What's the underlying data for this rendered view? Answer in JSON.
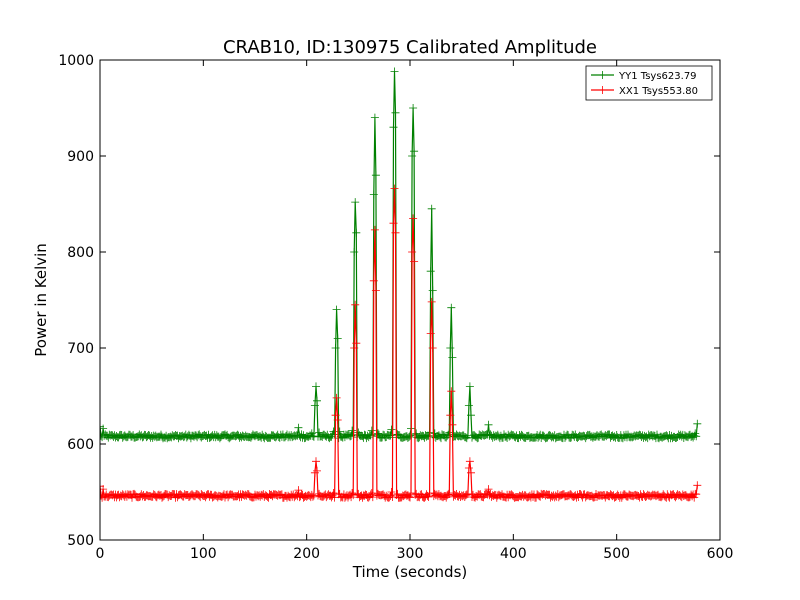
{
  "chart_data": {
    "type": "line",
    "title": "CRAB10, ID:130975 Calibrated Amplitude",
    "xlabel": "Time (seconds)",
    "ylabel": "Power in Kelvin",
    "xlim": [
      0,
      600
    ],
    "ylim": [
      500,
      1000
    ],
    "xticks": [
      0,
      100,
      200,
      300,
      400,
      500,
      600
    ],
    "yticks": [
      500,
      600,
      700,
      800,
      900,
      1000
    ],
    "grid": false,
    "legend_position": "top-right",
    "baseline_noise": 2,
    "series": [
      {
        "name": "YY1 Tsys623.79",
        "color": "#008000",
        "marker": "+",
        "baseline": 608,
        "points": [
          [
            0,
            618
          ],
          [
            3,
            616
          ],
          [
            190,
            609
          ],
          [
            192,
            617
          ],
          [
            195,
            610
          ],
          [
            205,
            611
          ],
          [
            208,
            640
          ],
          [
            209,
            660
          ],
          [
            210,
            645
          ],
          [
            212,
            612
          ],
          [
            226,
            613
          ],
          [
            228,
            700
          ],
          [
            229,
            740
          ],
          [
            230,
            710
          ],
          [
            232,
            613
          ],
          [
            244,
            614
          ],
          [
            246,
            800
          ],
          [
            247,
            852
          ],
          [
            248,
            820
          ],
          [
            250,
            612
          ],
          [
            263,
            614
          ],
          [
            265,
            860
          ],
          [
            266,
            940
          ],
          [
            267,
            880
          ],
          [
            269,
            611
          ],
          [
            282,
            615
          ],
          [
            284,
            930
          ],
          [
            285,
            988
          ],
          [
            286,
            945
          ],
          [
            288,
            610
          ],
          [
            301,
            616
          ],
          [
            302,
            900
          ],
          [
            303,
            950
          ],
          [
            304,
            905
          ],
          [
            306,
            611
          ],
          [
            319,
            612
          ],
          [
            320,
            780
          ],
          [
            321,
            845
          ],
          [
            322,
            760
          ],
          [
            324,
            611
          ],
          [
            338,
            612
          ],
          [
            339,
            700
          ],
          [
            340,
            742
          ],
          [
            341,
            690
          ],
          [
            343,
            608
          ],
          [
            356,
            609
          ],
          [
            357,
            640
          ],
          [
            358,
            660
          ],
          [
            359,
            630
          ],
          [
            361,
            609
          ],
          [
            374,
            610
          ],
          [
            376,
            620
          ],
          [
            378,
            610
          ],
          [
            576,
            611
          ],
          [
            578,
            621
          ]
        ]
      },
      {
        "name": "XX1 Tsys553.80",
        "color": "#ff0000",
        "marker": "+",
        "baseline": 546,
        "points": [
          [
            0,
            556
          ],
          [
            3,
            553
          ],
          [
            190,
            547
          ],
          [
            192,
            552
          ],
          [
            195,
            548
          ],
          [
            205,
            547
          ],
          [
            208,
            570
          ],
          [
            209,
            582
          ],
          [
            210,
            572
          ],
          [
            212,
            548
          ],
          [
            226,
            549
          ],
          [
            228,
            630
          ],
          [
            229,
            648
          ],
          [
            230,
            625
          ],
          [
            232,
            548
          ],
          [
            244,
            549
          ],
          [
            246,
            700
          ],
          [
            247,
            745
          ],
          [
            248,
            705
          ],
          [
            250,
            548
          ],
          [
            263,
            549
          ],
          [
            265,
            770
          ],
          [
            266,
            823
          ],
          [
            267,
            760
          ],
          [
            269,
            548
          ],
          [
            282,
            550
          ],
          [
            284,
            830
          ],
          [
            285,
            866
          ],
          [
            286,
            820
          ],
          [
            288,
            548
          ],
          [
            301,
            549
          ],
          [
            302,
            800
          ],
          [
            303,
            835
          ],
          [
            304,
            790
          ],
          [
            306,
            548
          ],
          [
            319,
            549
          ],
          [
            320,
            715
          ],
          [
            321,
            748
          ],
          [
            322,
            700
          ],
          [
            324,
            548
          ],
          [
            338,
            549
          ],
          [
            339,
            630
          ],
          [
            340,
            655
          ],
          [
            341,
            620
          ],
          [
            343,
            547
          ],
          [
            356,
            548
          ],
          [
            357,
            575
          ],
          [
            358,
            582
          ],
          [
            359,
            570
          ],
          [
            361,
            547
          ],
          [
            374,
            548
          ],
          [
            376,
            553
          ],
          [
            378,
            548
          ],
          [
            576,
            548
          ],
          [
            578,
            557
          ]
        ]
      }
    ]
  }
}
